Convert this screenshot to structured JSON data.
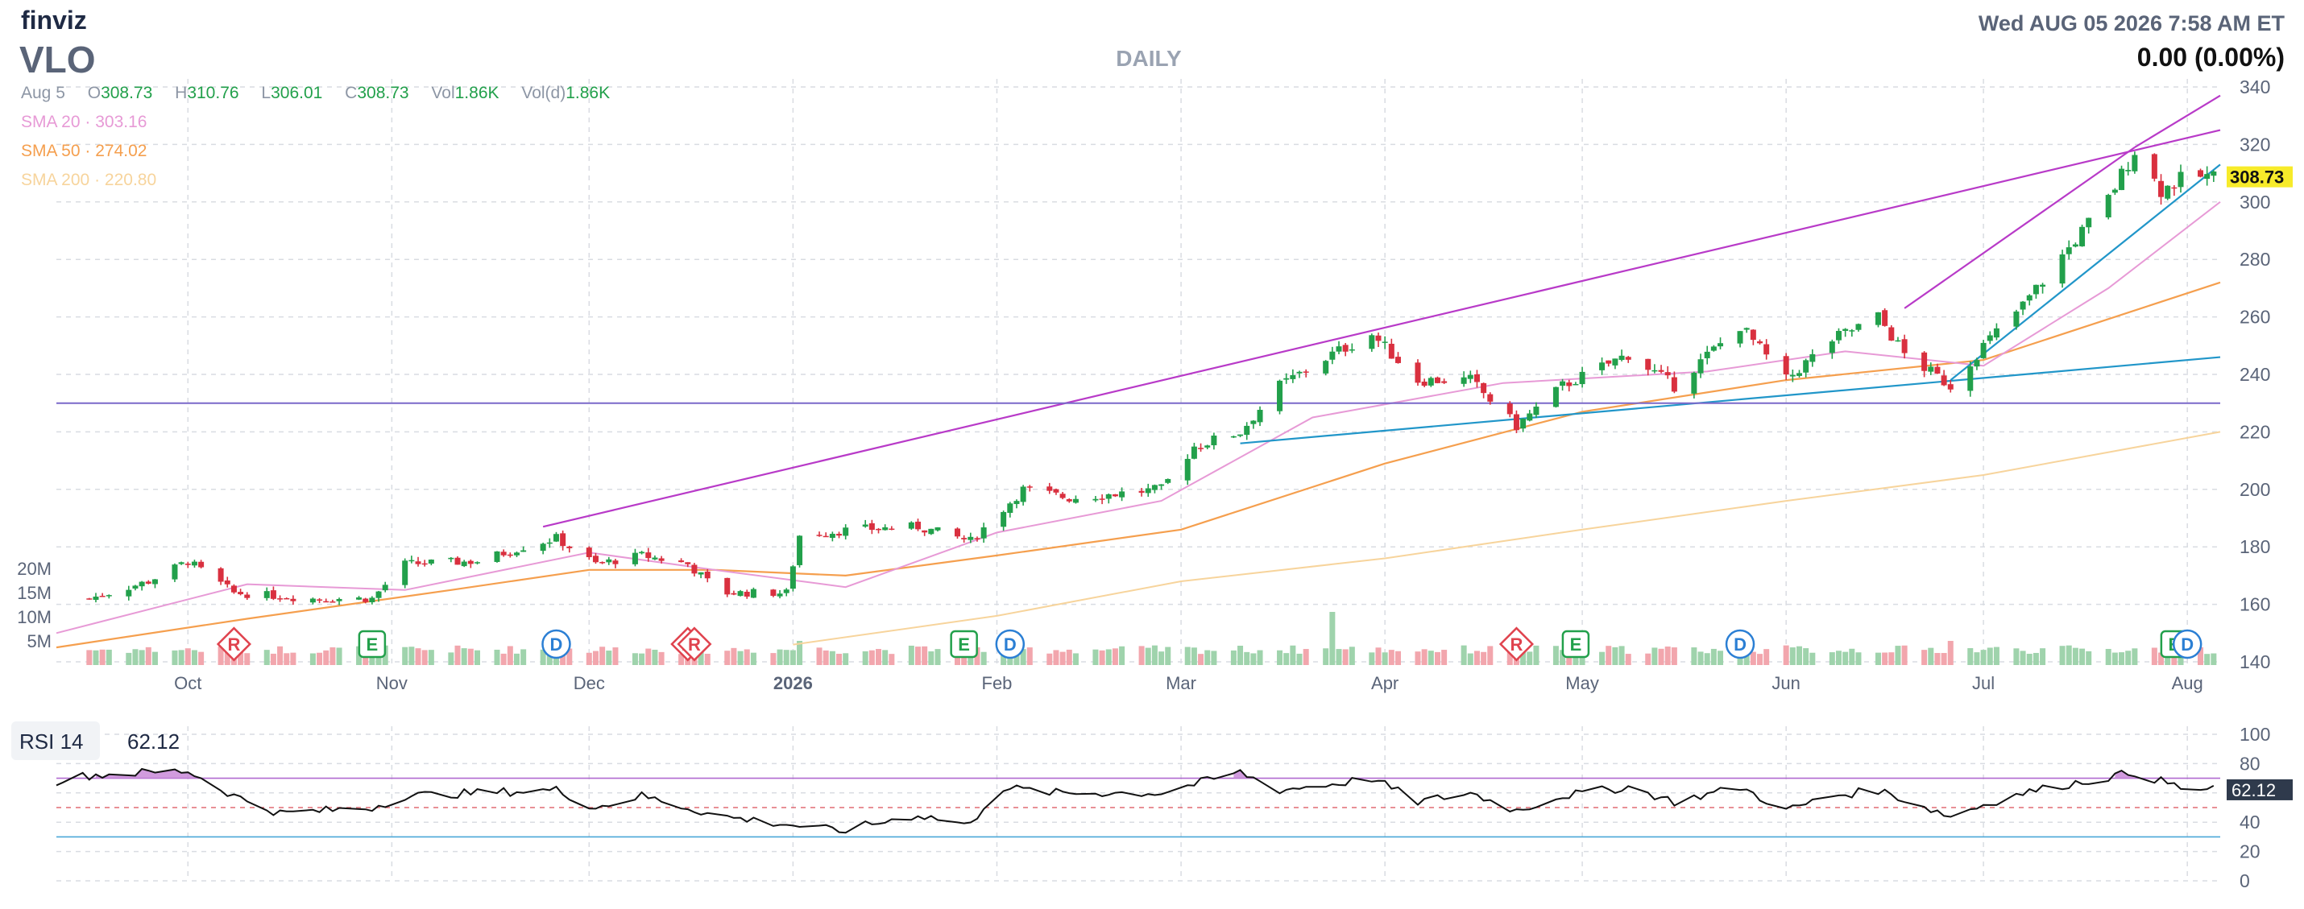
{
  "header": {
    "logo": "finviz",
    "ticker": "VLO",
    "timeframe": "DAILY",
    "datetime": "Wed AUG 05 2026 7:58 AM ET",
    "change": "0.00 (0.00%)"
  },
  "ohlc": {
    "date": "Aug 5",
    "open_label": "O",
    "open": "308.73",
    "high_label": "H",
    "high": "310.76",
    "low_label": "L",
    "low": "306.01",
    "close_label": "C",
    "close": "308.73",
    "vol_label": "Vol",
    "vol": "1.86K",
    "vold_label": "Vol(d)",
    "vold": "1.86K"
  },
  "indicators": [
    {
      "label": "SMA 20",
      "value": "303.16",
      "color": "#e79ad6"
    },
    {
      "label": "SMA 50",
      "value": "274.02",
      "color": "#f59f4e"
    },
    {
      "label": "SMA 200",
      "value": "220.80",
      "color": "#f7d49c"
    }
  ],
  "rsi": {
    "label": "RSI 14",
    "value": "62.12"
  },
  "colors": {
    "up": "#22a04b",
    "down": "#d9303f",
    "vol_up": "#9fd3ac",
    "vol_down": "#f2a6ad",
    "channel": "#b83ac8",
    "trend": "#2196c9",
    "hline": "#7a68c9",
    "price_tag": "#f7eb2a"
  },
  "chart_data": [
    {
      "type": "candlestick",
      "ticker": "VLO",
      "x_axis_labels": [
        "Oct",
        "Nov",
        "Dec",
        "2026",
        "Feb",
        "Mar",
        "Apr",
        "May",
        "Jun",
        "Jul",
        "Aug"
      ],
      "y_ticks": [
        140,
        160,
        180,
        200,
        220,
        240,
        260,
        280,
        300,
        320,
        340
      ],
      "ylim": [
        140,
        340
      ],
      "volume_ticks": [
        "20M",
        "15M",
        "10M",
        "5M"
      ],
      "last_price": "308.73",
      "price_keypoints": [
        {
          "date": "Sep 16",
          "close": 162
        },
        {
          "date": "Sep 25",
          "close": 168
        },
        {
          "date": "Oct 1",
          "close": 175
        },
        {
          "date": "Oct 8",
          "close": 164
        },
        {
          "date": "Oct 20",
          "close": 162
        },
        {
          "date": "Oct 29",
          "close": 162
        },
        {
          "date": "Nov 3",
          "close": 174
        },
        {
          "date": "Nov 14",
          "close": 175
        },
        {
          "date": "Nov 21",
          "close": 180
        },
        {
          "date": "Nov 26",
          "close": 183
        },
        {
          "date": "Dec 2",
          "close": 174
        },
        {
          "date": "Dec 9",
          "close": 177
        },
        {
          "date": "Dec 16",
          "close": 174
        },
        {
          "date": "Dec 21",
          "close": 164
        },
        {
          "date": "Dec 31",
          "close": 164
        },
        {
          "date": "Jan 2",
          "close": 184
        },
        {
          "date": "Jan 10",
          "close": 186
        },
        {
          "date": "Jan 20",
          "close": 187
        },
        {
          "date": "Jan 28",
          "close": 182
        },
        {
          "date": "Feb 5",
          "close": 200
        },
        {
          "date": "Feb 12",
          "close": 197
        },
        {
          "date": "Feb 26",
          "close": 200
        },
        {
          "date": "Mar 3",
          "close": 215
        },
        {
          "date": "Mar 10",
          "close": 220
        },
        {
          "date": "Mar 16",
          "close": 236
        },
        {
          "date": "Mar 24",
          "close": 247
        },
        {
          "date": "Mar 30",
          "close": 254
        },
        {
          "date": "Apr 6",
          "close": 238
        },
        {
          "date": "Apr 14",
          "close": 238
        },
        {
          "date": "Apr 21",
          "close": 222
        },
        {
          "date": "Apr 28",
          "close": 236
        },
        {
          "date": "May 8",
          "close": 247
        },
        {
          "date": "May 15",
          "close": 236
        },
        {
          "date": "May 25",
          "close": 257
        },
        {
          "date": "Jun 1",
          "close": 238
        },
        {
          "date": "Jun 8",
          "close": 252
        },
        {
          "date": "Jun 15",
          "close": 260
        },
        {
          "date": "Jun 19",
          "close": 247
        },
        {
          "date": "Jun 26",
          "close": 236
        },
        {
          "date": "Jul 1",
          "close": 250
        },
        {
          "date": "Jul 7",
          "close": 264
        },
        {
          "date": "Jul 14",
          "close": 284
        },
        {
          "date": "Jul 20",
          "close": 301
        },
        {
          "date": "Jul 24",
          "close": 318
        },
        {
          "date": "Jul 28",
          "close": 304
        },
        {
          "date": "Aug 1",
          "close": 309
        },
        {
          "date": "Aug 5",
          "close": 308.73
        }
      ],
      "sma20_keypoints": [
        [
          "Sep 11",
          150
        ],
        [
          "Oct 10",
          167
        ],
        [
          "Nov 3",
          165
        ],
        [
          "Dec 1",
          178
        ],
        [
          "Dec 20",
          172
        ],
        [
          "Jan 9",
          166
        ],
        [
          "Feb 1",
          185
        ],
        [
          "Feb 26",
          196
        ],
        [
          "Mar 21",
          225
        ],
        [
          "Apr 19",
          237
        ],
        [
          "May 20",
          241
        ],
        [
          "Jun 10",
          248
        ],
        [
          "Jul 1",
          243
        ],
        [
          "Jul 20",
          270
        ],
        [
          "Aug 6",
          300
        ]
      ],
      "sma50_keypoints": [
        [
          "Sep 11",
          145
        ],
        [
          "Oct 10",
          155
        ],
        [
          "Nov 10",
          165
        ],
        [
          "Dec 1",
          172
        ],
        [
          "Dec 20",
          172
        ],
        [
          "Jan 9",
          170
        ],
        [
          "Feb 1",
          177
        ],
        [
          "Mar 1",
          186
        ],
        [
          "Apr 1",
          209
        ],
        [
          "May 1",
          227
        ],
        [
          "Jun 1",
          238
        ],
        [
          "Jul 1",
          245
        ],
        [
          "Aug 6",
          272
        ]
      ],
      "sma200_keypoints": [
        [
          "Dec 1",
          138
        ],
        [
          "Jan 1",
          146
        ],
        [
          "Feb 1",
          156
        ],
        [
          "Mar 1",
          168
        ],
        [
          "Apr 1",
          176
        ],
        [
          "May 1",
          186
        ],
        [
          "Jun 1",
          196
        ],
        [
          "Jul 1",
          205
        ],
        [
          "Aug 6",
          220
        ]
      ],
      "events": [
        {
          "label": "R",
          "date": "Oct 8"
        },
        {
          "label": "E",
          "date": "Oct 29"
        },
        {
          "label": "D",
          "date": "Nov 26"
        },
        {
          "label": "R",
          "date": "Dec 16"
        },
        {
          "label": "R",
          "date": "Dec 17"
        },
        {
          "label": "E",
          "date": "Jan 27"
        },
        {
          "label": "D",
          "date": "Feb 3"
        },
        {
          "label": "R",
          "date": "Apr 21"
        },
        {
          "label": "E",
          "date": "Apr 30"
        },
        {
          "label": "D",
          "date": "May 25"
        },
        {
          "label": "E",
          "date": "Jul 30"
        },
        {
          "label": "D",
          "date": "Aug 1"
        }
      ]
    },
    {
      "type": "line",
      "name": "RSI 14",
      "y_ticks": [
        0,
        20,
        40,
        60,
        80,
        100
      ],
      "ylim": [
        0,
        100
      ],
      "last_value": "62.12",
      "keypoints": [
        [
          "Sep 11",
          68
        ],
        [
          "Sep 16",
          72
        ],
        [
          "Sep 25",
          74
        ],
        [
          "Oct 1",
          75
        ],
        [
          "Oct 8",
          58
        ],
        [
          "Oct 15",
          46
        ],
        [
          "Oct 29",
          50
        ],
        [
          "Nov 3",
          58
        ],
        [
          "Nov 14",
          60
        ],
        [
          "Nov 26",
          62
        ],
        [
          "Dec 2",
          50
        ],
        [
          "Dec 9",
          58
        ],
        [
          "Dec 21",
          44
        ],
        [
          "Jan 1",
          38
        ],
        [
          "Jan 8",
          34
        ],
        [
          "Jan 20",
          45
        ],
        [
          "Jan 28",
          38
        ],
        [
          "Feb 1",
          64
        ],
        [
          "Feb 10",
          60
        ],
        [
          "Feb 26",
          60
        ],
        [
          "Mar 3",
          66
        ],
        [
          "Mar 10",
          74
        ],
        [
          "Mar 16",
          62
        ],
        [
          "Mar 24",
          66
        ],
        [
          "Mar 30",
          70
        ],
        [
          "Apr 6",
          54
        ],
        [
          "Apr 14",
          60
        ],
        [
          "Apr 21",
          48
        ],
        [
          "Apr 28",
          58
        ],
        [
          "May 8",
          64
        ],
        [
          "May 15",
          54
        ],
        [
          "May 25",
          64
        ],
        [
          "Jun 1",
          48
        ],
        [
          "Jun 8",
          58
        ],
        [
          "Jun 15",
          62
        ],
        [
          "Jun 26",
          44
        ],
        [
          "Jul 1",
          52
        ],
        [
          "Jul 7",
          60
        ],
        [
          "Jul 14",
          66
        ],
        [
          "Jul 24",
          74
        ],
        [
          "Aug 1",
          62
        ],
        [
          "Aug 5",
          62.12
        ]
      ]
    }
  ]
}
